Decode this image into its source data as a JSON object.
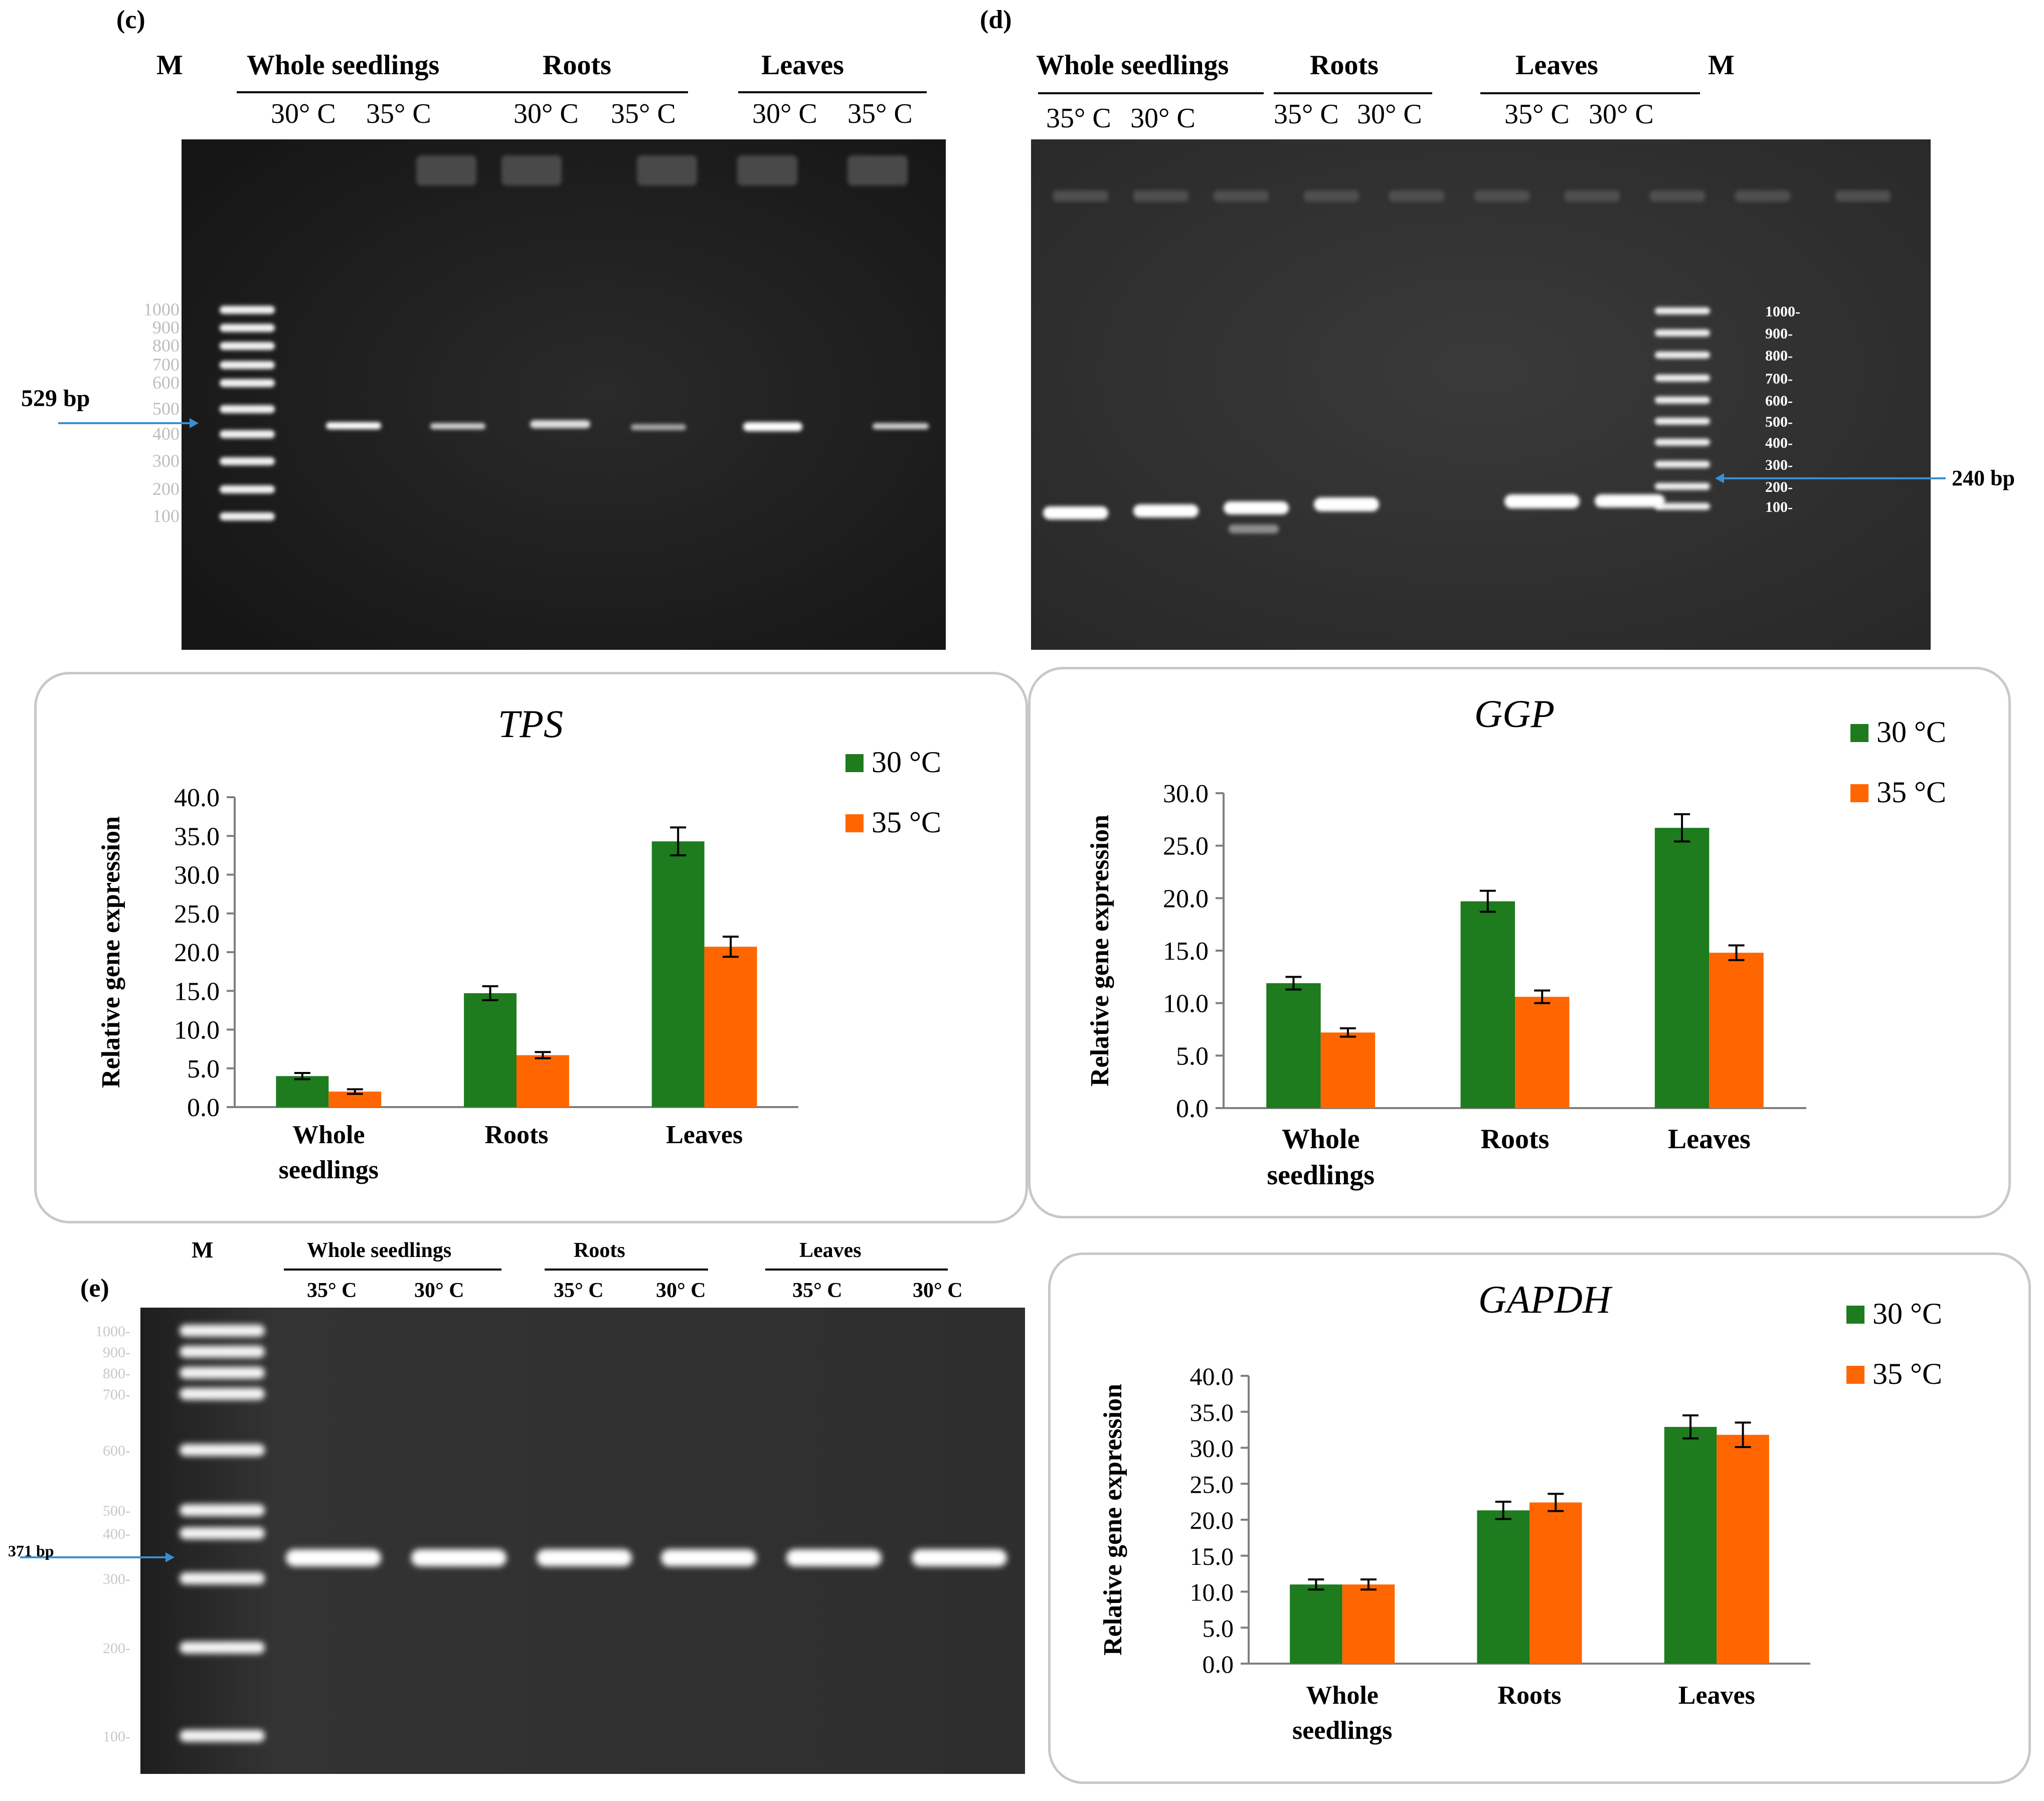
{
  "panels": {
    "c": {
      "label": "(c)",
      "marker_label": "M",
      "groups": [
        "Whole seedlings",
        "Roots",
        "Leaves"
      ],
      "lanes": [
        "30° C",
        "35° C",
        "30° C",
        "35° C",
        "30° C",
        "35° C"
      ],
      "ladder": [
        "1000",
        "900",
        "800",
        "700",
        "600",
        "500",
        "400",
        "300",
        "200",
        "100"
      ],
      "band_label": "529 bp"
    },
    "d": {
      "label": "(d)",
      "marker_label": "M",
      "groups": [
        "Whole seedlings",
        "Roots",
        "Leaves"
      ],
      "lanes": [
        "35° C",
        "30° C",
        "35° C",
        "30° C",
        "35° C",
        "30° C"
      ],
      "ladder": [
        "1000-",
        "900-",
        "800-",
        "700-",
        "600-",
        "500-",
        "400-",
        "300-",
        "200-",
        "100-"
      ],
      "band_label": "240 bp"
    },
    "e": {
      "label": "(e)",
      "marker_label": "M",
      "groups": [
        "Whole seedlings",
        "Roots",
        "Leaves"
      ],
      "lanes": [
        "35° C",
        "30° C",
        "35° C",
        "30° C",
        "35° C",
        "30° C"
      ],
      "ladder": [
        "1000-",
        "900-",
        "800-",
        "700-",
        "600-",
        "500-",
        "400-",
        "300-",
        "200-",
        "100-"
      ],
      "band_label": "371 bp"
    }
  },
  "colors": {
    "s30": "#1e7b1e",
    "s35": "#ff6600",
    "gel_dark": "#141414",
    "gel_mid": "#2a2a2a",
    "arrow": "#3a8fd0"
  },
  "chart_data": [
    {
      "type": "bar",
      "title": "TPS",
      "ylabel": "Relative gene expression",
      "categories": [
        "Whole\nseedlings",
        "Roots",
        "Leaves"
      ],
      "series": [
        {
          "name": "30 °C",
          "values": [
            4.0,
            14.7,
            34.3
          ],
          "errors": [
            0.4,
            0.9,
            1.8
          ]
        },
        {
          "name": "35 °C",
          "values": [
            2.0,
            6.7,
            20.7
          ],
          "errors": [
            0.3,
            0.4,
            1.3
          ]
        }
      ],
      "ylim": [
        0,
        40
      ],
      "yticks": [
        "0.0",
        "5.0",
        "10.0",
        "15.0",
        "20.0",
        "25.0",
        "30.0",
        "35.0",
        "40.0"
      ],
      "legend": "top-right",
      "grid": false
    },
    {
      "type": "bar",
      "title": "GGP",
      "ylabel": "Relative gene expression",
      "categories": [
        "Whole\nseedlings",
        "Roots",
        "Leaves"
      ],
      "series": [
        {
          "name": "30 °C",
          "values": [
            11.9,
            19.7,
            26.7
          ],
          "errors": [
            0.6,
            1.0,
            1.3
          ]
        },
        {
          "name": "35 °C",
          "values": [
            7.2,
            10.6,
            14.8
          ],
          "errors": [
            0.4,
            0.6,
            0.7
          ]
        }
      ],
      "ylim": [
        0,
        30
      ],
      "yticks": [
        "0.0",
        "5.0",
        "10.0",
        "15.0",
        "20.0",
        "25.0",
        "30.0"
      ],
      "legend": "top-right",
      "grid": false
    },
    {
      "type": "bar",
      "title": "GAPDH",
      "ylabel": "Relative gene expression",
      "categories": [
        "Whole\nseedlings",
        "Roots",
        "Leaves"
      ],
      "series": [
        {
          "name": "30 °C",
          "values": [
            11.0,
            21.3,
            32.9
          ],
          "errors": [
            0.7,
            1.2,
            1.6
          ]
        },
        {
          "name": "35 °C",
          "values": [
            11.0,
            22.4,
            31.8
          ],
          "errors": [
            0.7,
            1.2,
            1.7
          ]
        }
      ],
      "ylim": [
        0,
        40
      ],
      "yticks": [
        "0.0",
        "5.0",
        "10.0",
        "15.0",
        "20.0",
        "25.0",
        "30.0",
        "35.0",
        "40.0"
      ],
      "legend": "top-right",
      "grid": false
    }
  ]
}
